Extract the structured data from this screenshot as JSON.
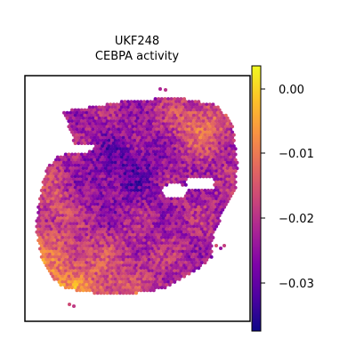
{
  "chart_data": {
    "type": "heatmap",
    "title_lines": [
      "UKF248",
      "CEBPA activity"
    ],
    "xlabel": "",
    "ylabel": "",
    "grid": false,
    "colormap": "plasma",
    "colorbar": {
      "range": [
        -0.037,
        0.004
      ],
      "ticks": [
        0.0,
        -0.01,
        -0.02,
        -0.03
      ],
      "tick_labels": [
        "0.00",
        "−0.01",
        "−0.02",
        "−0.03"
      ]
    },
    "spots": {
      "description_value_range": [
        -0.037,
        0.004
      ],
      "typical_value": -0.022,
      "seed": 248
    }
  }
}
